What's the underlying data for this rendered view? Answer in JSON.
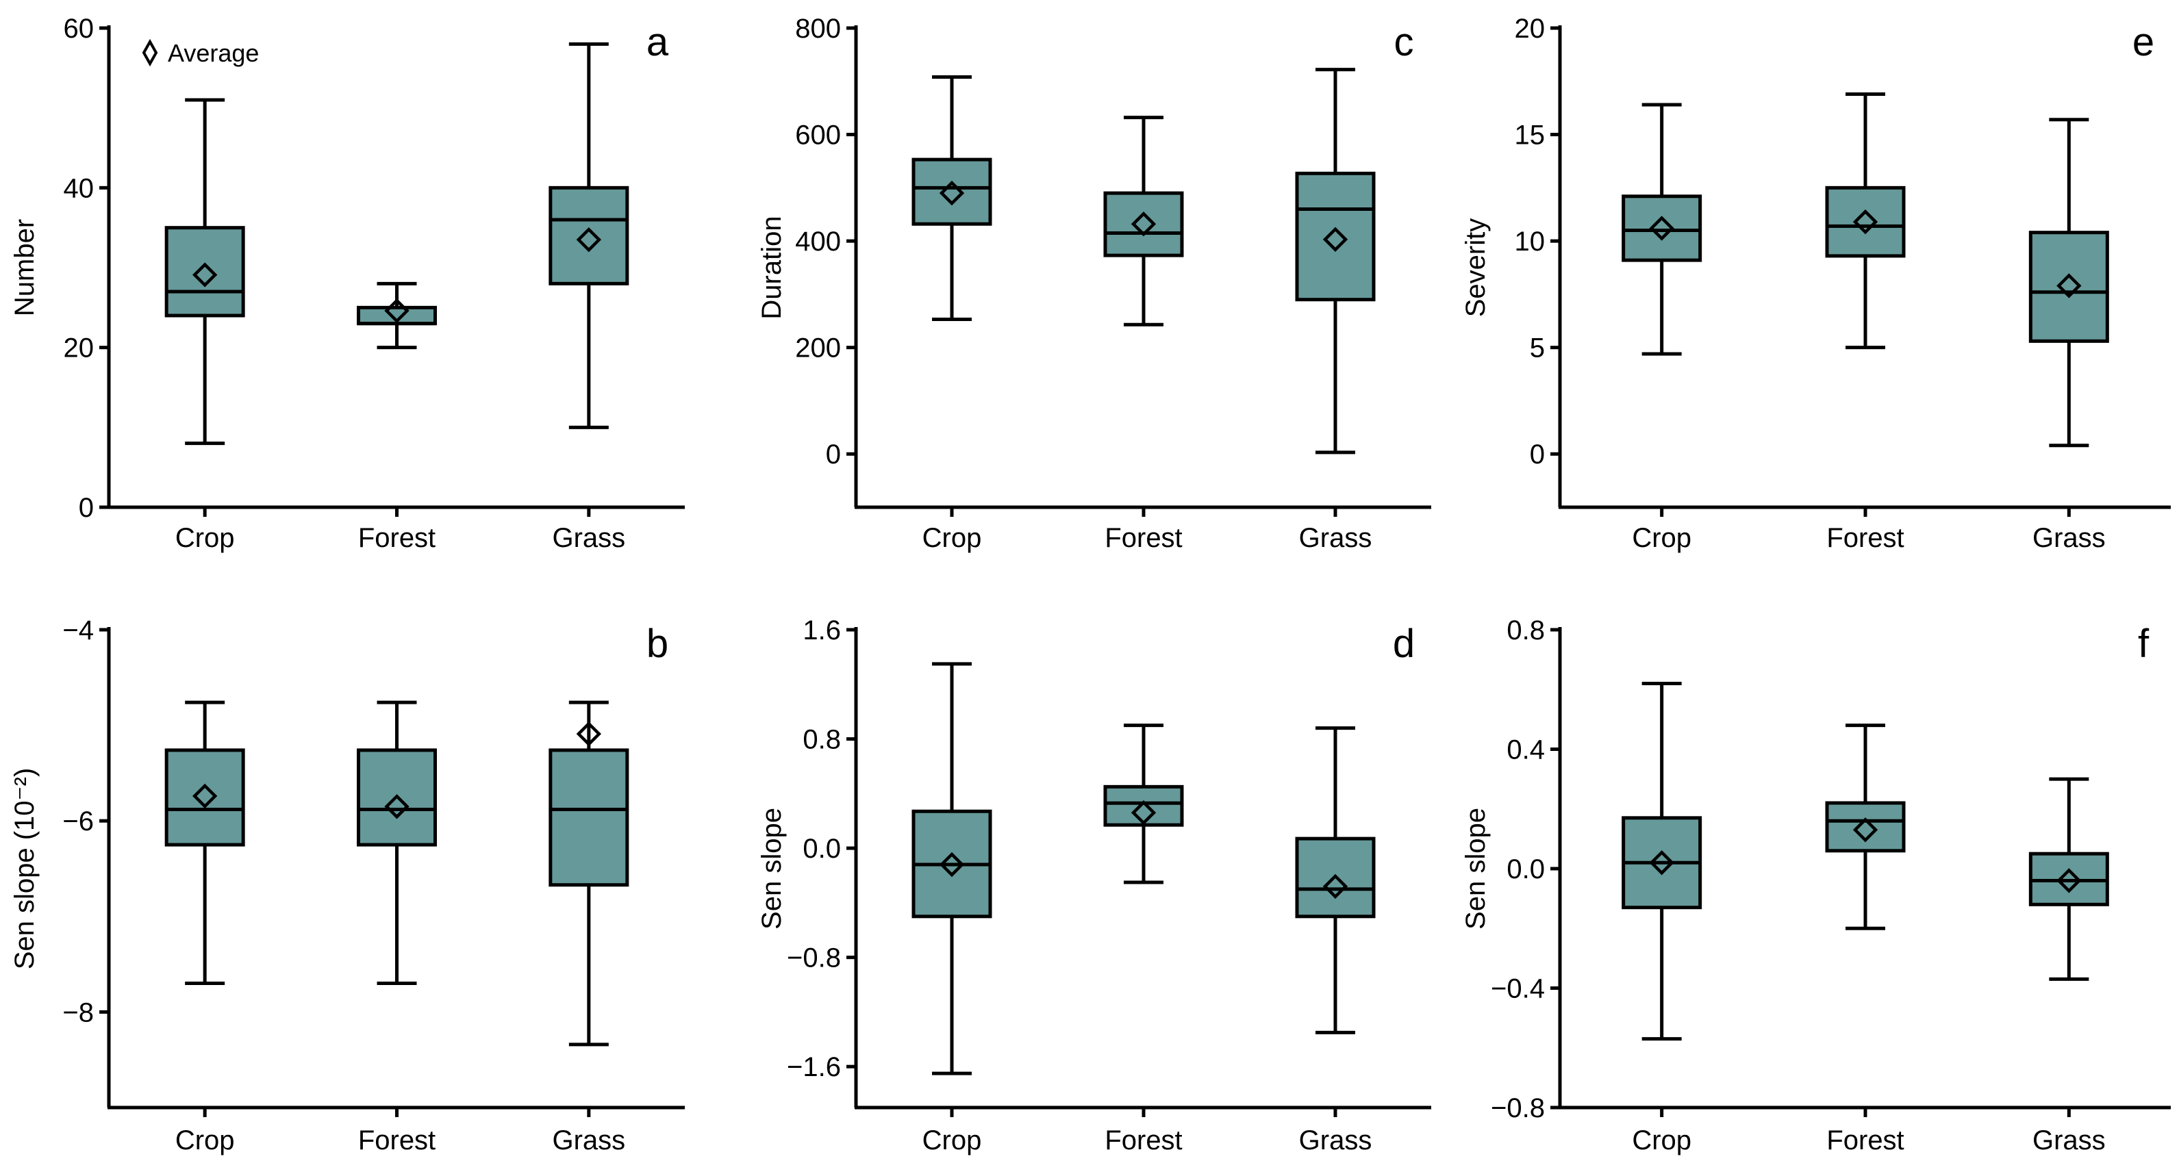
{
  "colors": {
    "box_fill": "#669999",
    "stroke": "#000000"
  },
  "legend": {
    "marker": "diamond-icon",
    "label": "Average"
  },
  "chart_data": [
    {
      "panel": "a",
      "type": "box",
      "ylabel": "Number",
      "ylim": [
        0,
        60
      ],
      "yticks": [
        "0",
        "20",
        "40",
        "60"
      ],
      "ytick_values": [
        0,
        20,
        40,
        60
      ],
      "categories": [
        "Crop",
        "Forest",
        "Grass"
      ],
      "boxes": [
        {
          "whisker_low": 8,
          "q1": 24,
          "median": 27,
          "q3": 35,
          "whisker_high": 51,
          "mean": 29.1
        },
        {
          "whisker_low": 20,
          "q1": 23,
          "median": 23,
          "q3": 25,
          "whisker_high": 28,
          "mean": 24.6
        },
        {
          "whisker_low": 10,
          "q1": 28,
          "median": 36,
          "q3": 40,
          "whisker_high": 58,
          "mean": 33.5
        }
      ]
    },
    {
      "panel": "c",
      "type": "box",
      "ylabel": "Duration",
      "ylim": [
        -100,
        800
      ],
      "yticks": [
        "0",
        "200",
        "400",
        "600",
        "800"
      ],
      "ytick_values": [
        0,
        200,
        400,
        600,
        800
      ],
      "categories": [
        "Crop",
        "Forest",
        "Grass"
      ],
      "boxes": [
        {
          "whisker_low": 253,
          "q1": 432,
          "median": 500,
          "q3": 553,
          "whisker_high": 708,
          "mean": 490
        },
        {
          "whisker_low": 243,
          "q1": 373,
          "median": 415,
          "q3": 490,
          "whisker_high": 632,
          "mean": 432
        },
        {
          "whisker_low": 3,
          "q1": 290,
          "median": 460,
          "q3": 527,
          "whisker_high": 722,
          "mean": 403
        }
      ]
    },
    {
      "panel": "e",
      "type": "box",
      "ylabel": "Severity",
      "ylim": [
        -2.5,
        20
      ],
      "yticks": [
        "0",
        "5",
        "10",
        "15",
        "20"
      ],
      "ytick_values": [
        0,
        5,
        10,
        15,
        20
      ],
      "categories": [
        "Crop",
        "Forest",
        "Grass"
      ],
      "boxes": [
        {
          "whisker_low": 4.7,
          "q1": 9.1,
          "median": 10.5,
          "q3": 12.1,
          "whisker_high": 16.4,
          "mean": 10.6
        },
        {
          "whisker_low": 5.0,
          "q1": 9.3,
          "median": 10.7,
          "q3": 12.5,
          "whisker_high": 16.9,
          "mean": 10.9
        },
        {
          "whisker_low": 0.4,
          "q1": 5.3,
          "median": 7.6,
          "q3": 10.4,
          "whisker_high": 15.7,
          "mean": 7.9
        }
      ]
    },
    {
      "panel": "b",
      "type": "box",
      "ylabel": "Sen slope (10⁻²)",
      "ylim": [
        -9,
        -4
      ],
      "yticks": [
        "−8",
        "−6",
        "−4"
      ],
      "ytick_values": [
        -8,
        -6,
        -4
      ],
      "categories": [
        "Crop",
        "Forest",
        "Grass"
      ],
      "boxes": [
        {
          "whisker_low": -7.7,
          "q1": -6.25,
          "median": -5.88,
          "q3": -5.26,
          "whisker_high": -4.76,
          "mean": -5.74
        },
        {
          "whisker_low": -7.7,
          "q1": -6.25,
          "median": -5.88,
          "q3": -5.26,
          "whisker_high": -4.76,
          "mean": -5.85
        },
        {
          "whisker_low": -8.34,
          "q1": -6.67,
          "median": -5.88,
          "q3": -5.26,
          "whisker_high": -4.76,
          "mean": -5.09
        }
      ]
    },
    {
      "panel": "d",
      "type": "box",
      "ylabel": "Sen slope",
      "ylim": [
        -1.9,
        1.6
      ],
      "yticks": [
        "−1.6",
        "−0.8",
        "0.0",
        "0.8",
        "1.6"
      ],
      "ytick_values": [
        -1.6,
        -0.8,
        0,
        0.8,
        1.6
      ],
      "categories": [
        "Crop",
        "Forest",
        "Grass"
      ],
      "boxes": [
        {
          "whisker_low": -1.65,
          "q1": -0.5,
          "median": -0.12,
          "q3": 0.27,
          "whisker_high": 1.35,
          "mean": -0.12
        },
        {
          "whisker_low": -0.25,
          "q1": 0.17,
          "median": 0.33,
          "q3": 0.45,
          "whisker_high": 0.9,
          "mean": 0.26
        },
        {
          "whisker_low": -1.35,
          "q1": -0.5,
          "median": -0.3,
          "q3": 0.07,
          "whisker_high": 0.88,
          "mean": -0.28
        }
      ]
    },
    {
      "panel": "f",
      "type": "box",
      "ylabel": "Sen slope",
      "ylim": [
        -0.8,
        0.8
      ],
      "yticks": [
        "−0.8",
        "−0.4",
        "0.0",
        "0.4",
        "0.8"
      ],
      "ytick_values": [
        -0.8,
        -0.4,
        0,
        0.4,
        0.8
      ],
      "categories": [
        "Crop",
        "Forest",
        "Grass"
      ],
      "boxes": [
        {
          "whisker_low": -0.57,
          "q1": -0.13,
          "median": 0.02,
          "q3": 0.17,
          "whisker_high": 0.62,
          "mean": 0.02
        },
        {
          "whisker_low": -0.2,
          "q1": 0.06,
          "median": 0.16,
          "q3": 0.22,
          "whisker_high": 0.48,
          "mean": 0.13
        },
        {
          "whisker_low": -0.37,
          "q1": -0.12,
          "median": -0.04,
          "q3": 0.05,
          "whisker_high": 0.3,
          "mean": -0.04
        }
      ]
    }
  ]
}
